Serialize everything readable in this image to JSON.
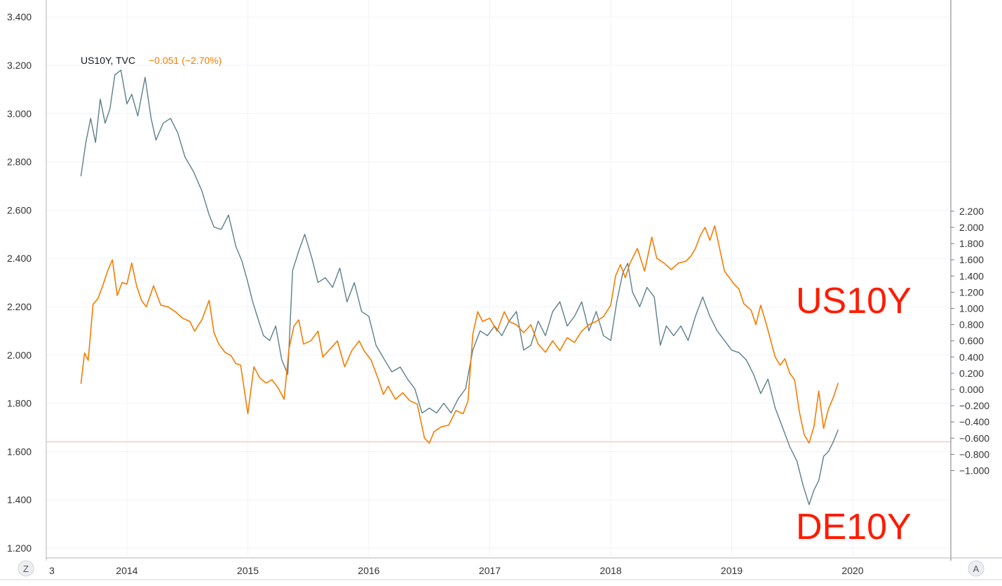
{
  "chart_data": {
    "type": "line",
    "legend": {
      "symbol": "US10Y, TVC",
      "change": "−0.051 (−2.70%)"
    },
    "annotations": [
      "US10Y",
      "DE10Y"
    ],
    "x_ticks": [
      "3",
      "2014",
      "2015",
      "2016",
      "2017",
      "2018",
      "2019",
      "2020"
    ],
    "y_left_ticks": [
      "3.400",
      "3.200",
      "3.000",
      "2.800",
      "2.600",
      "2.400",
      "2.200",
      "2.000",
      "1.800",
      "1.600",
      "1.400",
      "1.200"
    ],
    "y_right_ticks": [
      "2.200",
      "2.000",
      "1.800",
      "1.600",
      "1.400",
      "1.200",
      "1.000",
      "0.800",
      "0.600",
      "0.400",
      "0.200",
      "0.000",
      "−0.200",
      "−0.400",
      "−0.600",
      "−0.800",
      "−1.000"
    ],
    "y_left_range": [
      1.2,
      3.4
    ],
    "y_right_range": [
      -1.0,
      2.2
    ],
    "x_range": [
      2013.6,
      2020.75
    ],
    "horizontal_line": 1.64,
    "grid": true,
    "colors": {
      "us10y": "#5b7f8a",
      "de10y": "#f57c00",
      "annotation": "#ff1a00",
      "hline": "#f4b6a8"
    },
    "series": [
      {
        "name": "US10Y",
        "axis": "left",
        "points": [
          [
            2013.62,
            2.74
          ],
          [
            2013.66,
            2.88
          ],
          [
            2013.7,
            2.98
          ],
          [
            2013.74,
            2.88
          ],
          [
            2013.78,
            3.06
          ],
          [
            2013.82,
            2.96
          ],
          [
            2013.86,
            3.02
          ],
          [
            2013.9,
            3.16
          ],
          [
            2013.95,
            3.18
          ],
          [
            2014.0,
            3.04
          ],
          [
            2014.04,
            3.08
          ],
          [
            2014.09,
            2.99
          ],
          [
            2014.15,
            3.15
          ],
          [
            2014.2,
            2.98
          ],
          [
            2014.24,
            2.89
          ],
          [
            2014.3,
            2.96
          ],
          [
            2014.36,
            2.98
          ],
          [
            2014.42,
            2.92
          ],
          [
            2014.48,
            2.82
          ],
          [
            2014.55,
            2.76
          ],
          [
            2014.62,
            2.68
          ],
          [
            2014.68,
            2.58
          ],
          [
            2014.72,
            2.53
          ],
          [
            2014.78,
            2.52
          ],
          [
            2014.84,
            2.58
          ],
          [
            2014.9,
            2.45
          ],
          [
            2014.95,
            2.39
          ],
          [
            2015.0,
            2.3
          ],
          [
            2015.04,
            2.22
          ],
          [
            2015.09,
            2.14
          ],
          [
            2015.13,
            2.08
          ],
          [
            2015.18,
            2.06
          ],
          [
            2015.23,
            2.12
          ],
          [
            2015.28,
            1.98
          ],
          [
            2015.33,
            1.92
          ],
          [
            2015.37,
            2.35
          ],
          [
            2015.42,
            2.43
          ],
          [
            2015.47,
            2.5
          ],
          [
            2015.53,
            2.4
          ],
          [
            2015.58,
            2.3
          ],
          [
            2015.64,
            2.32
          ],
          [
            2015.7,
            2.28
          ],
          [
            2015.76,
            2.36
          ],
          [
            2015.82,
            2.22
          ],
          [
            2015.88,
            2.3
          ],
          [
            2015.94,
            2.18
          ],
          [
            2016.0,
            2.16
          ],
          [
            2016.06,
            2.04
          ],
          [
            2016.13,
            1.98
          ],
          [
            2016.19,
            1.93
          ],
          [
            2016.26,
            1.95
          ],
          [
            2016.32,
            1.9
          ],
          [
            2016.38,
            1.86
          ],
          [
            2016.44,
            1.76
          ],
          [
            2016.5,
            1.78
          ],
          [
            2016.56,
            1.76
          ],
          [
            2016.62,
            1.8
          ],
          [
            2016.68,
            1.76
          ],
          [
            2016.74,
            1.82
          ],
          [
            2016.8,
            1.86
          ],
          [
            2016.86,
            2.02
          ],
          [
            2016.92,
            2.1
          ],
          [
            2016.98,
            2.08
          ],
          [
            2017.04,
            2.12
          ],
          [
            2017.1,
            2.08
          ],
          [
            2017.16,
            2.14
          ],
          [
            2017.22,
            2.18
          ],
          [
            2017.28,
            2.02
          ],
          [
            2017.34,
            2.04
          ],
          [
            2017.4,
            2.14
          ],
          [
            2017.46,
            2.08
          ],
          [
            2017.52,
            2.18
          ],
          [
            2017.58,
            2.22
          ],
          [
            2017.64,
            2.12
          ],
          [
            2017.7,
            2.16
          ],
          [
            2017.76,
            2.22
          ],
          [
            2017.82,
            2.1
          ],
          [
            2017.88,
            2.18
          ],
          [
            2017.94,
            2.08
          ],
          [
            2018.0,
            2.06
          ],
          [
            2018.05,
            2.22
          ],
          [
            2018.1,
            2.34
          ],
          [
            2018.14,
            2.38
          ],
          [
            2018.18,
            2.26
          ],
          [
            2018.24,
            2.2
          ],
          [
            2018.3,
            2.28
          ],
          [
            2018.36,
            2.24
          ],
          [
            2018.41,
            2.04
          ],
          [
            2018.46,
            2.12
          ],
          [
            2018.52,
            2.08
          ],
          [
            2018.58,
            2.12
          ],
          [
            2018.64,
            2.06
          ],
          [
            2018.7,
            2.16
          ],
          [
            2018.76,
            2.24
          ],
          [
            2018.82,
            2.16
          ],
          [
            2018.88,
            2.1
          ],
          [
            2018.94,
            2.06
          ],
          [
            2019.0,
            2.02
          ],
          [
            2019.06,
            2.01
          ],
          [
            2019.12,
            1.98
          ],
          [
            2019.18,
            1.92
          ],
          [
            2019.24,
            1.84
          ],
          [
            2019.3,
            1.9
          ],
          [
            2019.36,
            1.78
          ],
          [
            2019.42,
            1.7
          ],
          [
            2019.48,
            1.62
          ],
          [
            2019.54,
            1.56
          ],
          [
            2019.59,
            1.46
          ],
          [
            2019.64,
            1.38
          ],
          [
            2019.68,
            1.44
          ],
          [
            2019.72,
            1.48
          ],
          [
            2019.76,
            1.58
          ],
          [
            2019.8,
            1.6
          ],
          [
            2019.84,
            1.64
          ],
          [
            2019.88,
            1.69
          ]
        ]
      },
      {
        "name": "DE10Y",
        "axis": "right",
        "points": [
          [
            2013.62,
            0.07
          ],
          [
            2013.65,
            0.45
          ],
          [
            2013.68,
            0.36
          ],
          [
            2013.72,
            1.05
          ],
          [
            2013.76,
            1.12
          ],
          [
            2013.8,
            1.28
          ],
          [
            2013.84,
            1.46
          ],
          [
            2013.88,
            1.6
          ],
          [
            2013.92,
            1.16
          ],
          [
            2013.96,
            1.32
          ],
          [
            2014.0,
            1.3
          ],
          [
            2014.04,
            1.56
          ],
          [
            2014.08,
            1.28
          ],
          [
            2014.12,
            1.1
          ],
          [
            2014.16,
            1.02
          ],
          [
            2014.22,
            1.28
          ],
          [
            2014.28,
            1.04
          ],
          [
            2014.34,
            1.02
          ],
          [
            2014.4,
            0.96
          ],
          [
            2014.46,
            0.88
          ],
          [
            2014.52,
            0.84
          ],
          [
            2014.56,
            0.72
          ],
          [
            2014.62,
            0.86
          ],
          [
            2014.68,
            1.1
          ],
          [
            2014.72,
            0.7
          ],
          [
            2014.76,
            0.56
          ],
          [
            2014.81,
            0.46
          ],
          [
            2014.86,
            0.42
          ],
          [
            2014.9,
            0.32
          ],
          [
            2014.94,
            0.3
          ],
          [
            2015.0,
            -0.3
          ],
          [
            2015.05,
            0.28
          ],
          [
            2015.1,
            0.14
          ],
          [
            2015.15,
            0.08
          ],
          [
            2015.2,
            0.12
          ],
          [
            2015.25,
            0.02
          ],
          [
            2015.3,
            -0.12
          ],
          [
            2015.34,
            0.5
          ],
          [
            2015.38,
            0.78
          ],
          [
            2015.42,
            0.86
          ],
          [
            2015.46,
            0.56
          ],
          [
            2015.52,
            0.6
          ],
          [
            2015.58,
            0.72
          ],
          [
            2015.62,
            0.4
          ],
          [
            2015.68,
            0.5
          ],
          [
            2015.74,
            0.6
          ],
          [
            2015.8,
            0.28
          ],
          [
            2015.86,
            0.48
          ],
          [
            2015.92,
            0.6
          ],
          [
            2015.96,
            0.48
          ],
          [
            2016.02,
            0.36
          ],
          [
            2016.08,
            0.12
          ],
          [
            2016.12,
            -0.06
          ],
          [
            2016.16,
            0.04
          ],
          [
            2016.22,
            -0.12
          ],
          [
            2016.28,
            -0.04
          ],
          [
            2016.34,
            -0.14
          ],
          [
            2016.4,
            -0.18
          ],
          [
            2016.46,
            -0.6
          ],
          [
            2016.5,
            -0.66
          ],
          [
            2016.54,
            -0.52
          ],
          [
            2016.6,
            -0.46
          ],
          [
            2016.66,
            -0.44
          ],
          [
            2016.72,
            -0.26
          ],
          [
            2016.78,
            -0.3
          ],
          [
            2016.82,
            -0.14
          ],
          [
            2016.86,
            0.68
          ],
          [
            2016.9,
            0.96
          ],
          [
            2016.94,
            0.84
          ],
          [
            2017.0,
            0.88
          ],
          [
            2017.06,
            0.72
          ],
          [
            2017.12,
            0.96
          ],
          [
            2017.16,
            0.84
          ],
          [
            2017.22,
            0.8
          ],
          [
            2017.28,
            0.7
          ],
          [
            2017.34,
            0.8
          ],
          [
            2017.4,
            0.56
          ],
          [
            2017.46,
            0.46
          ],
          [
            2017.52,
            0.6
          ],
          [
            2017.58,
            0.48
          ],
          [
            2017.64,
            0.64
          ],
          [
            2017.7,
            0.58
          ],
          [
            2017.76,
            0.72
          ],
          [
            2017.82,
            0.8
          ],
          [
            2017.88,
            0.84
          ],
          [
            2017.94,
            0.9
          ],
          [
            2018.0,
            1.04
          ],
          [
            2018.04,
            1.4
          ],
          [
            2018.08,
            1.54
          ],
          [
            2018.12,
            1.38
          ],
          [
            2018.16,
            1.56
          ],
          [
            2018.22,
            1.74
          ],
          [
            2018.28,
            1.46
          ],
          [
            2018.34,
            1.88
          ],
          [
            2018.38,
            1.62
          ],
          [
            2018.44,
            1.56
          ],
          [
            2018.5,
            1.48
          ],
          [
            2018.56,
            1.56
          ],
          [
            2018.62,
            1.58
          ],
          [
            2018.66,
            1.64
          ],
          [
            2018.7,
            1.74
          ],
          [
            2018.74,
            1.9
          ],
          [
            2018.78,
            2.0
          ],
          [
            2018.82,
            1.84
          ],
          [
            2018.86,
            2.02
          ],
          [
            2018.9,
            1.74
          ],
          [
            2018.94,
            1.46
          ],
          [
            2018.98,
            1.38
          ],
          [
            2019.02,
            1.3
          ],
          [
            2019.06,
            1.24
          ],
          [
            2019.1,
            1.06
          ],
          [
            2019.16,
            0.98
          ],
          [
            2019.2,
            0.8
          ],
          [
            2019.24,
            1.04
          ],
          [
            2019.28,
            0.84
          ],
          [
            2019.32,
            0.62
          ],
          [
            2019.36,
            0.4
          ],
          [
            2019.4,
            0.3
          ],
          [
            2019.44,
            0.38
          ],
          [
            2019.48,
            0.2
          ],
          [
            2019.52,
            0.12
          ],
          [
            2019.56,
            -0.28
          ],
          [
            2019.6,
            -0.56
          ],
          [
            2019.64,
            -0.66
          ],
          [
            2019.68,
            -0.46
          ],
          [
            2019.72,
            -0.02
          ],
          [
            2019.76,
            -0.48
          ],
          [
            2019.8,
            -0.24
          ],
          [
            2019.84,
            -0.1
          ],
          [
            2019.88,
            0.08
          ]
        ]
      }
    ]
  }
}
